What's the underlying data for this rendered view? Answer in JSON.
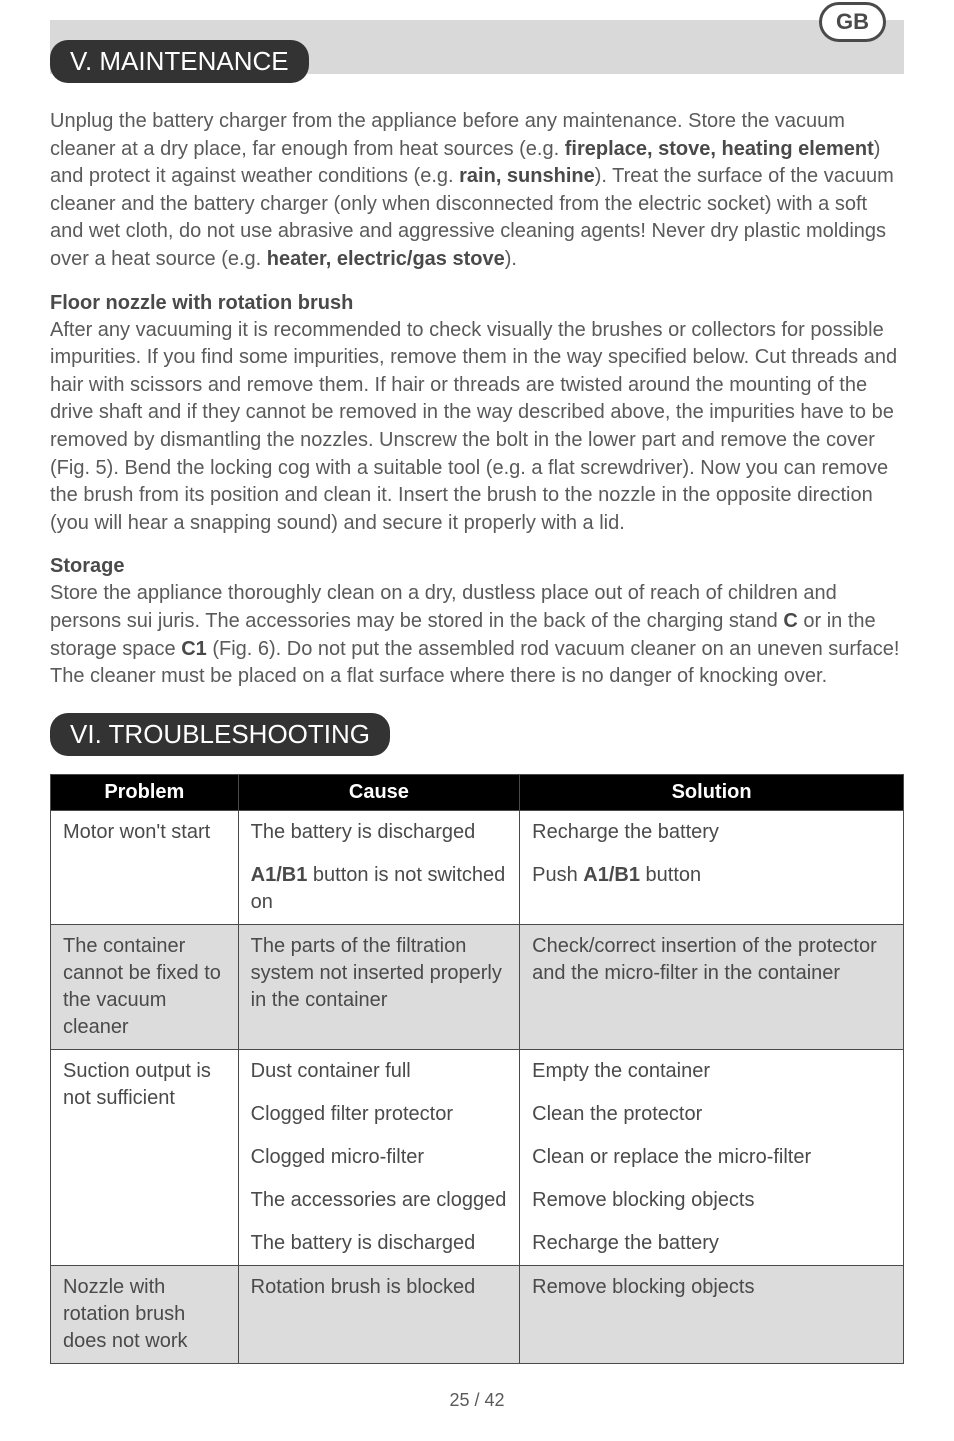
{
  "badge": "GB",
  "section_maintenance": {
    "title": "V. MAINTENANCE",
    "intro_html": "Unplug the battery charger from the appliance before any maintenance. Store the vacuum cleaner at a dry place, far enough from heat sources (e.g. <b>fireplace, stove, heating element</b>) and protect it against weather conditions (e.g. <b>rain, sunshine</b>). Treat the surface of the vacuum cleaner and the battery charger (only when disconnected from the electric socket) with a soft and wet cloth, do not use abrasive and aggressive cleaning agents! Never dry plastic moldings over a heat source (e.g. <b>heater, electric/gas stove</b>).",
    "floor_heading": "Floor nozzle with rotation brush",
    "floor_text": "After any vacuuming it is recommended to check visually the brushes or collectors for possible impurities. If you find some impurities, remove them in the way specified below. Cut threads and hair with scissors and remove them. If hair or threads are twisted around the mounting of the drive shaft and if they cannot be removed in the way described above, the impurities have to be removed by dismantling the nozzles. Unscrew the bolt in the lower part and remove the cover (Fig. 5). Bend the locking cog with a suitable tool (e.g. a flat screwdriver). Now you can remove the brush from its position and clean it. Insert the brush to the nozzle in the opposite direction (you will hear a snapping sound) and secure it properly with a lid.",
    "storage_heading": "Storage",
    "storage_html": "Store the appliance thoroughly clean on a dry, dustless place out of reach of children and persons sui juris. The accessories may be stored in the back of the charging stand <b>C</b> or in the storage space <b>C1</b> (Fig. 6). Do not put the assembled rod vacuum cleaner on an uneven surface! The cleaner must be placed on a flat surface where there is no danger of knocking over."
  },
  "section_troubleshooting": {
    "title": "VI. TROUBLESHOOTING",
    "columns": [
      "Problem",
      "Cause",
      "Solution"
    ],
    "col_widths": [
      "22%",
      "33%",
      "45%"
    ],
    "rows": [
      {
        "alt": false,
        "problem": "Motor won't start",
        "pairs": [
          {
            "cause_html": "The battery is discharged",
            "solution_html": "Recharge the battery"
          },
          {
            "cause_html": "<b>A1/B1</b> button is not switched on",
            "solution_html": "Push <b>A1/B1</b> button"
          }
        ]
      },
      {
        "alt": true,
        "problem": "The container cannot be fixed to the vacuum cleaner",
        "pairs": [
          {
            "cause_html": "The parts of the filtration system not inserted properly in the container",
            "solution_html": "Check/correct insertion of the protector and the micro-filter in the container"
          }
        ]
      },
      {
        "alt": false,
        "problem": "Suction output is not sufficient",
        "pairs": [
          {
            "cause_html": "Dust container full",
            "solution_html": "Empty the container"
          },
          {
            "cause_html": "Clogged filter protector",
            "solution_html": "Clean the protector"
          },
          {
            "cause_html": "Clogged micro-filter",
            "solution_html": "Clean or replace the micro-filter"
          },
          {
            "cause_html": "The accessories are clogged",
            "solution_html": "Remove blocking objects"
          },
          {
            "cause_html": "The battery is discharged",
            "solution_html": "Recharge the battery"
          }
        ]
      },
      {
        "alt": true,
        "problem": "Nozzle with rotation brush does not work",
        "pairs": [
          {
            "cause_html": "Rotation brush is blocked",
            "solution_html": "Remove blocking objects"
          }
        ]
      }
    ]
  },
  "page_number": "25 / 42"
}
